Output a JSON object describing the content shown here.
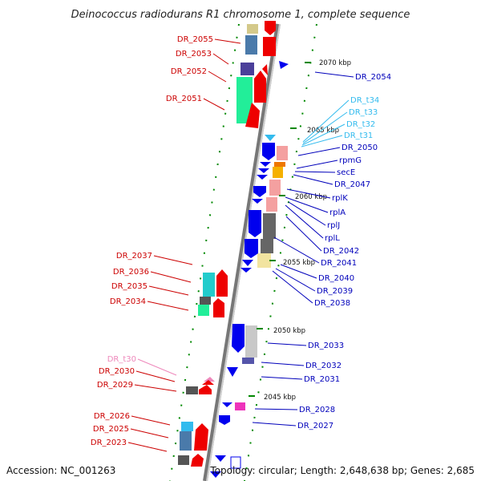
{
  "title": "Deinococcus radiodurans R1 chromosome 1, complete sequence",
  "footer": {
    "accession": "Accession: NC_001263",
    "topology": "Topology: circular; Length: 2,648,638 bp; Genes: 2,685"
  },
  "colors": {
    "left_label": "#cc0000",
    "right_label": "#0000bb",
    "trna_label": "#33bbee",
    "pseudo_label": "#ee88bb",
    "forward_gene": "#ee0000",
    "reverse_gene": "#0000ee",
    "backbone": "#999999",
    "tick": "#008800"
  },
  "kbp_ticks": [
    "2070 kbp",
    "2065 kbp",
    "2060 kbp",
    "2055 kbp",
    "2050 kbp",
    "2045 kbp"
  ],
  "left_labels": [
    "DR_2055",
    "DR_2053",
    "DR_2052",
    "DR_2051",
    "DR_2037",
    "DR_2036",
    "DR_2035",
    "DR_2034",
    "DR_t30",
    "DR_2030",
    "DR_2029",
    "DR_2026",
    "DR_2025",
    "DR_2023"
  ],
  "right_labels": [
    "DR_2054",
    "DR_t34",
    "DR_t33",
    "DR_t32",
    "DR_t31",
    "DR_2050",
    "rpmG",
    "secE",
    "DR_2047",
    "rplK",
    "rplA",
    "rplJ",
    "rplL",
    "DR_2042",
    "DR_2041",
    "DR_2040",
    "DR_2039",
    "DR_2038",
    "DR_2033",
    "DR_2032",
    "DR_2031",
    "DR_2028",
    "DR_2027"
  ]
}
